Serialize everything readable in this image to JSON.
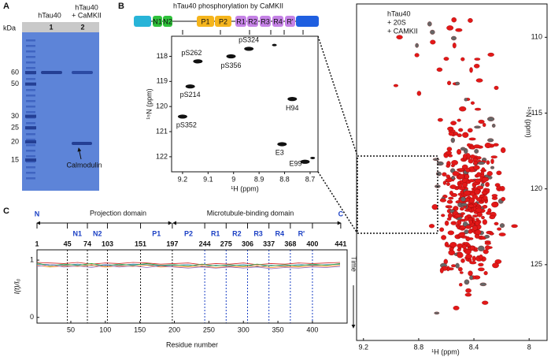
{
  "panel_a": {
    "label": "A",
    "unit": "kDa",
    "lanes": [
      {
        "number": "1",
        "name_lines": [
          "hTau40"
        ]
      },
      {
        "number": "2",
        "name_lines": [
          "hTau40",
          "+ CaMKII"
        ]
      }
    ],
    "markers": [
      60,
      50,
      30,
      25,
      20,
      15
    ],
    "annotation": "Calmodulin"
  },
  "panel_b": {
    "label": "B",
    "title": "hTau40 phosphorylation by CaMKII",
    "domains": [
      "N1",
      "N2",
      "P1",
      "P2",
      "R1",
      "R2",
      "R3",
      "R4",
      "R'"
    ],
    "inset": {
      "xlabel": "¹H (ppm)",
      "ylabel": "¹⁵N (ppm)",
      "xlim": [
        9.243,
        8.669
      ],
      "ylim": [
        117.2,
        122.6
      ],
      "xticks": [
        9.2,
        9.1,
        9.0,
        8.9,
        8.8,
        8.7
      ],
      "yticks": [
        118,
        119,
        120,
        121,
        122
      ],
      "peaks": [
        {
          "label": "pS262",
          "x": 9.14,
          "y": 118.2
        },
        {
          "label": "pS356",
          "x": 9.01,
          "y": 118.0
        },
        {
          "label": "pS324",
          "x": 8.94,
          "y": 117.7
        },
        {
          "label": "pS214",
          "x": 9.17,
          "y": 119.2
        },
        {
          "label": "pS352",
          "x": 9.2,
          "y": 120.4
        },
        {
          "label": "H94",
          "x": 8.77,
          "y": 119.7
        },
        {
          "label": "E3",
          "x": 8.81,
          "y": 121.5
        },
        {
          "label": "E99",
          "x": 8.72,
          "y": 122.2
        },
        {
          "label": null,
          "x": 8.69,
          "y": 122.05
        },
        {
          "label": null,
          "x": 8.84,
          "y": 117.55
        }
      ]
    }
  },
  "panel_c": {
    "label": "C",
    "termini": [
      "N",
      "C"
    ],
    "projection_domain": "Projection domain",
    "mtb_domain": "Microtubule-binding domain",
    "boundaries": [
      1,
      45,
      74,
      103,
      151,
      197,
      244,
      275,
      306,
      337,
      368,
      400,
      441
    ],
    "domains": [
      "N1",
      "N2",
      "P1",
      "P2",
      "R1",
      "R2",
      "R3",
      "R4",
      "R'"
    ],
    "xlabel": "Residue number",
    "ylabel": "I(t)/I₀",
    "time_label": "Time",
    "xlim": [
      0,
      449
    ],
    "ylim": [
      -0.1,
      1.18
    ],
    "xticks": [
      50,
      100,
      150,
      200,
      250,
      300,
      350,
      400
    ],
    "yticks": [
      0,
      1
    ],
    "x": [
      1,
      20,
      40,
      60,
      80,
      100,
      120,
      140,
      160,
      180,
      200,
      220,
      240,
      260,
      280,
      300,
      320,
      340,
      360,
      380,
      400,
      420,
      440
    ],
    "series": [
      {
        "color": "#d62728",
        "values": [
          0.96,
          0.95,
          0.94,
          0.96,
          0.93,
          0.95,
          0.94,
          0.96,
          0.95,
          0.93,
          0.94,
          0.95,
          0.92,
          0.94,
          0.93,
          0.95,
          0.92,
          0.94,
          0.93,
          0.95,
          0.94,
          0.95,
          0.96
        ]
      },
      {
        "color": "#1f77b4",
        "values": [
          0.93,
          0.92,
          0.91,
          0.93,
          0.9,
          0.92,
          0.91,
          0.93,
          0.92,
          0.9,
          0.91,
          0.92,
          0.89,
          0.91,
          0.9,
          0.92,
          0.89,
          0.91,
          0.9,
          0.92,
          0.91,
          0.92,
          0.93
        ]
      },
      {
        "color": "#2ca02c",
        "values": [
          0.95,
          0.9,
          0.93,
          0.91,
          0.94,
          0.9,
          0.93,
          0.91,
          0.94,
          0.91,
          0.92,
          0.9,
          0.93,
          0.9,
          0.92,
          0.9,
          0.93,
          0.9,
          0.92,
          0.9,
          0.93,
          0.91,
          0.94
        ]
      },
      {
        "color": "#ff7f0e",
        "values": [
          0.91,
          0.88,
          0.9,
          0.89,
          0.91,
          0.88,
          0.9,
          0.89,
          0.91,
          0.88,
          0.89,
          0.88,
          0.9,
          0.87,
          0.89,
          0.88,
          0.9,
          0.87,
          0.89,
          0.88,
          0.9,
          0.89,
          0.91
        ]
      },
      {
        "color": "#9467bd",
        "values": [
          0.89,
          0.92,
          0.88,
          0.9,
          0.87,
          0.91,
          0.88,
          0.9,
          0.87,
          0.9,
          0.88,
          0.86,
          0.88,
          0.86,
          0.88,
          0.86,
          0.88,
          0.85,
          0.87,
          0.86,
          0.88,
          0.87,
          0.89
        ]
      }
    ]
  },
  "panel_d": {
    "annotation_lines": [
      "hTau40",
      "+ 20S",
      "+ CAMKII"
    ],
    "xlabel": "¹H (ppm)",
    "ylabel": "¹⁵N (ppm)",
    "xlim": [
      9.25,
      7.87
    ],
    "ylim": [
      107.8,
      130
    ],
    "xticks": [
      9.2,
      8.8,
      8.4,
      8.0
    ],
    "yticks": [
      110,
      115,
      120,
      125
    ]
  }
}
